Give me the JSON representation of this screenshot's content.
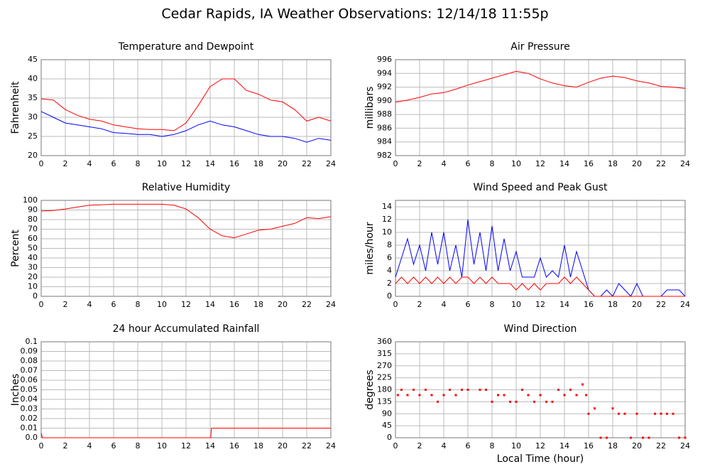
{
  "title": "Cedar Rapids, IA Weather Observations: 12/14/18 11:55p",
  "chart_data": [
    {
      "type": "line",
      "title": "Temperature and Dewpoint",
      "y_label": "Fahrenheit",
      "x": [
        0,
        1,
        2,
        3,
        4,
        5,
        6,
        7,
        8,
        9,
        10,
        11,
        12,
        13,
        14,
        15,
        16,
        17,
        18,
        19,
        20,
        21,
        22,
        23,
        24
      ],
      "series": [
        {
          "color": "#ff0000",
          "values": [
            34.8,
            34.5,
            32,
            30.5,
            29.5,
            29,
            28,
            27.5,
            27,
            26.8,
            26.8,
            26.5,
            28.5,
            33,
            38,
            40,
            40,
            37,
            36,
            34.5,
            34,
            32,
            29,
            30,
            29
          ]
        },
        {
          "color": "#0000ff",
          "values": [
            31.5,
            30,
            28.5,
            28,
            27.5,
            27,
            26,
            25.8,
            25.5,
            25.5,
            25,
            25.5,
            26.5,
            28,
            29,
            28,
            27.5,
            26.5,
            25.5,
            25,
            25,
            24.5,
            23.5,
            24.5,
            24
          ]
        }
      ],
      "xlim": [
        0,
        24
      ],
      "xticks": [
        0,
        2,
        4,
        6,
        8,
        10,
        12,
        14,
        16,
        18,
        20,
        22,
        24
      ],
      "ylim": [
        20,
        45
      ],
      "yticks": [
        20,
        25,
        30,
        35,
        40,
        45
      ],
      "grid": true
    },
    {
      "type": "line",
      "title": "Air Pressure",
      "y_label": "millibars",
      "x": [
        0,
        1,
        2,
        3,
        4,
        5,
        6,
        7,
        8,
        9,
        10,
        11,
        12,
        13,
        14,
        15,
        16,
        17,
        18,
        19,
        20,
        21,
        22,
        23,
        24
      ],
      "series": [
        {
          "color": "#ff0000",
          "values": [
            989.8,
            990.1,
            990.5,
            991,
            991.2,
            991.7,
            992.3,
            992.8,
            993.3,
            993.8,
            994.3,
            994.0,
            993.2,
            992.6,
            992.2,
            992.0,
            992.7,
            993.3,
            993.6,
            993.4,
            992.9,
            992.6,
            992.1,
            992.0,
            991.8
          ]
        }
      ],
      "xlim": [
        0,
        24
      ],
      "xticks": [
        0,
        2,
        4,
        6,
        8,
        10,
        12,
        14,
        16,
        18,
        20,
        22,
        24
      ],
      "ylim": [
        982,
        996
      ],
      "yticks": [
        982,
        984,
        986,
        988,
        990,
        992,
        994,
        996
      ],
      "grid": true
    },
    {
      "type": "line",
      "title": "Relative Humidity",
      "y_label": "Percent",
      "x": [
        0,
        1,
        2,
        3,
        4,
        5,
        6,
        7,
        8,
        9,
        10,
        11,
        12,
        13,
        14,
        15,
        16,
        17,
        18,
        19,
        20,
        21,
        22,
        23,
        24
      ],
      "series": [
        {
          "color": "#ff0000",
          "values": [
            89,
            89.5,
            91,
            93,
            95,
            95.5,
            96,
            96,
            96,
            96,
            96,
            95,
            91,
            82,
            70,
            63,
            61,
            65,
            69,
            70,
            73,
            76,
            82,
            81,
            83
          ]
        }
      ],
      "xlim": [
        0,
        24
      ],
      "xticks": [
        0,
        2,
        4,
        6,
        8,
        10,
        12,
        14,
        16,
        18,
        20,
        22,
        24
      ],
      "ylim": [
        0,
        100
      ],
      "yticks": [
        0,
        10,
        20,
        30,
        40,
        50,
        60,
        70,
        80,
        90,
        100
      ],
      "grid": true
    },
    {
      "type": "line",
      "title": "Wind Speed and Peak Gust",
      "y_label": "miles/hour",
      "x": [
        0,
        0.5,
        1,
        1.5,
        2,
        2.5,
        3,
        3.5,
        4,
        4.5,
        5,
        5.5,
        6,
        6.5,
        7,
        7.5,
        8,
        8.5,
        9,
        9.5,
        10,
        10.5,
        11,
        11.5,
        12,
        12.5,
        13,
        13.5,
        14,
        14.5,
        15,
        15.5,
        16,
        16.5,
        17,
        17.5,
        18,
        18.5,
        19,
        19.5,
        20,
        20.5,
        21,
        21.5,
        22,
        22.5,
        23,
        23.5,
        24
      ],
      "series": [
        {
          "color": "#0000ff",
          "values": [
            3,
            6,
            9,
            5,
            8,
            4,
            10,
            5,
            10,
            4,
            8,
            3,
            12,
            5,
            10,
            4,
            11,
            4,
            9,
            4,
            7,
            3,
            3,
            3,
            6,
            3,
            4,
            3,
            8,
            3,
            7,
            4,
            1,
            0,
            0,
            1,
            0,
            2,
            1,
            0,
            2,
            0,
            0,
            0,
            0,
            1,
            1,
            1,
            0
          ]
        },
        {
          "color": "#ff0000",
          "values": [
            2,
            3,
            2,
            3,
            2,
            3,
            2,
            3,
            2,
            3,
            2,
            3,
            3,
            2,
            3,
            2,
            3,
            2,
            2,
            2,
            1,
            2,
            1,
            2,
            1,
            2,
            2,
            2,
            3,
            2,
            3,
            2,
            1,
            0,
            0,
            0,
            0,
            0,
            0,
            0,
            0,
            0,
            0,
            0,
            0,
            0,
            0,
            0,
            0
          ]
        }
      ],
      "xlim": [
        0,
        24
      ],
      "xticks": [
        0,
        2,
        4,
        6,
        8,
        10,
        12,
        14,
        16,
        18,
        20,
        22,
        24
      ],
      "ylim": [
        0,
        15
      ],
      "yticks": [
        0,
        2,
        4,
        6,
        8,
        10,
        12,
        14
      ],
      "grid": true
    },
    {
      "type": "line",
      "title": "24 hour Accumulated Rainfall",
      "y_label": "Inches",
      "x": [
        0,
        0.1,
        14.05,
        14.1,
        24
      ],
      "series": [
        {
          "color": "#ff0000",
          "values": [
            0.005,
            0,
            0,
            0.01,
            0.01
          ]
        }
      ],
      "xlim": [
        0,
        24
      ],
      "xticks": [
        0,
        2,
        4,
        6,
        8,
        10,
        12,
        14,
        16,
        18,
        20,
        22,
        24
      ],
      "ylim": [
        0,
        0.1
      ],
      "yticks": [
        {
          "value": 0,
          "label": "0.0"
        },
        0.01,
        0.02,
        0.03,
        0.04,
        0.05,
        0.06,
        0.07,
        0.08,
        0.09,
        0.1
      ],
      "grid": true
    },
    {
      "type": "scatter",
      "title": "Wind Direction",
      "y_label": "degrees",
      "x_label": "Local Time (hour)",
      "x": [
        0.2,
        0.5,
        1,
        1.5,
        2,
        2.5,
        3,
        3.5,
        4,
        4.5,
        5,
        5.5,
        6,
        7,
        7.5,
        8,
        8.5,
        9,
        9.5,
        10,
        10.5,
        11,
        11.5,
        12,
        12.5,
        13,
        13.5,
        14,
        14.5,
        15,
        15.5,
        15.8,
        16,
        16.5,
        17,
        17.5,
        18,
        18.5,
        19,
        19.5,
        20,
        20.5,
        21,
        21.5,
        22,
        22.5,
        23,
        23.5,
        24
      ],
      "series": [
        {
          "color": "#ff0000",
          "values": [
            160,
            180,
            160,
            180,
            160,
            180,
            160,
            135,
            160,
            180,
            160,
            180,
            180,
            180,
            180,
            135,
            160,
            160,
            135,
            135,
            180,
            160,
            135,
            160,
            135,
            135,
            180,
            160,
            180,
            160,
            200,
            160,
            90,
            110,
            0,
            0,
            110,
            90,
            90,
            0,
            90,
            0,
            0,
            90,
            90,
            90,
            90,
            0,
            0
          ]
        }
      ],
      "xlim": [
        0,
        24
      ],
      "xticks": [
        0,
        2,
        4,
        6,
        8,
        10,
        12,
        14,
        16,
        18,
        20,
        22,
        24
      ],
      "ylim": [
        0,
        360
      ],
      "yticks": [
        0,
        45,
        90,
        135,
        180,
        225,
        270,
        315,
        360
      ],
      "grid": true
    }
  ]
}
